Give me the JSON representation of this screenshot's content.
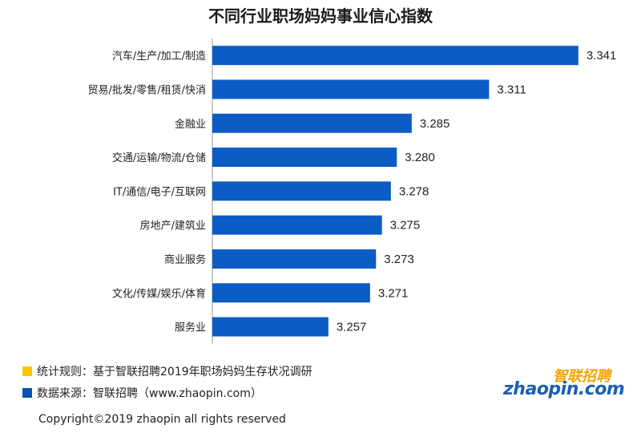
{
  "chart_data": {
    "type": "bar",
    "orientation": "horizontal",
    "title": "不同行业职场妈妈事业信心指数",
    "categories": [
      "汽车/生产/加工/制造",
      "贸易/批发/零售/租赁/快消",
      "金融业",
      "交通/运输/物流/仓储",
      "IT/通信/电子/互联网",
      "房地产/建筑业",
      "商业服务",
      "文化/传媒/娱乐/体育",
      "服务业"
    ],
    "values": [
      3.341,
      3.311,
      3.285,
      3.28,
      3.278,
      3.275,
      3.273,
      3.271,
      3.257
    ],
    "value_labels": [
      "3.341",
      "3.311",
      "3.285",
      "3.280",
      "3.278",
      "3.275",
      "3.273",
      "3.271",
      "3.257"
    ],
    "grid": false,
    "bar_color": "#0b5cc5"
  },
  "legend": [
    {
      "text": "统计规则：基于智联招聘2019年职场妈妈生存状况调研",
      "color": "#f7c600"
    },
    {
      "text": "数据来源：智联招聘（www.zhaopin.com）",
      "color": "#0b4fb0"
    }
  ],
  "logo": {
    "cn": "智联招聘",
    "en": "zhaopin.com"
  },
  "copyright": "Copyright©2019 zhaopin all rights reserved"
}
